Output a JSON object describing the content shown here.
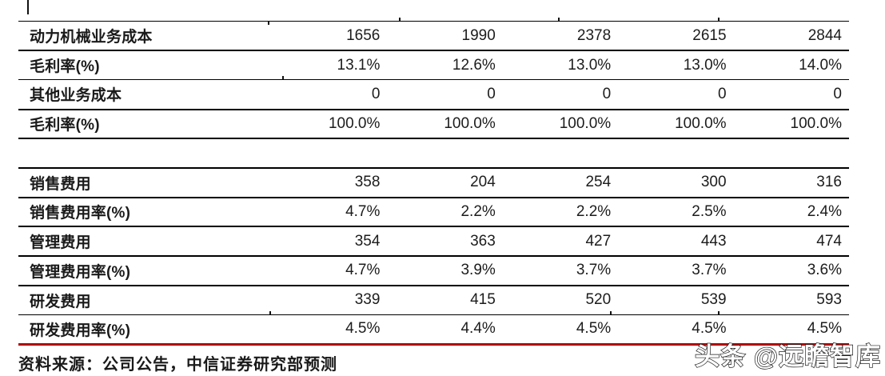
{
  "table": {
    "rows": [
      {
        "label": "动力机械业务成本",
        "spacer": false,
        "values": [
          "1656",
          "1990",
          "2378",
          "2615",
          "2844"
        ]
      },
      {
        "label": "毛利率(%)",
        "spacer": false,
        "values": [
          "13.1%",
          "12.6%",
          "13.0%",
          "13.0%",
          "14.0%"
        ]
      },
      {
        "label": "其他业务成本",
        "spacer": false,
        "values": [
          "0",
          "0",
          "0",
          "0",
          "0"
        ]
      },
      {
        "label": "毛利率(%)",
        "spacer": false,
        "values": [
          "100.0%",
          "100.0%",
          "100.0%",
          "100.0%",
          "100.0%"
        ]
      },
      {
        "label": "",
        "spacer": true,
        "values": [
          "",
          "",
          "",
          "",
          ""
        ]
      },
      {
        "label": "销售费用",
        "spacer": false,
        "values": [
          "358",
          "204",
          "254",
          "300",
          "316"
        ]
      },
      {
        "label": "销售费用率(%)",
        "spacer": false,
        "values": [
          "4.7%",
          "2.2%",
          "2.2%",
          "2.5%",
          "2.4%"
        ]
      },
      {
        "label": "管理费用",
        "spacer": false,
        "values": [
          "354",
          "363",
          "427",
          "443",
          "474"
        ]
      },
      {
        "label": "管理费用率(%)",
        "spacer": false,
        "values": [
          "4.7%",
          "3.9%",
          "3.7%",
          "3.7%",
          "3.6%"
        ]
      },
      {
        "label": "研发费用",
        "spacer": false,
        "values": [
          "339",
          "415",
          "520",
          "539",
          "593"
        ]
      },
      {
        "label": "研发费用率(%)",
        "spacer": false,
        "values": [
          "4.5%",
          "4.4%",
          "4.5%",
          "4.5%",
          "4.5%"
        ]
      }
    ]
  },
  "footer": {
    "source_text": "资料来源：公司公告，中信证券研究部预测"
  },
  "watermark": {
    "text": "头条 @远瞻智库"
  },
  "colors": {
    "rule_black": "#000000",
    "accent_red": "#b00000",
    "text": "#1a1a1a"
  }
}
